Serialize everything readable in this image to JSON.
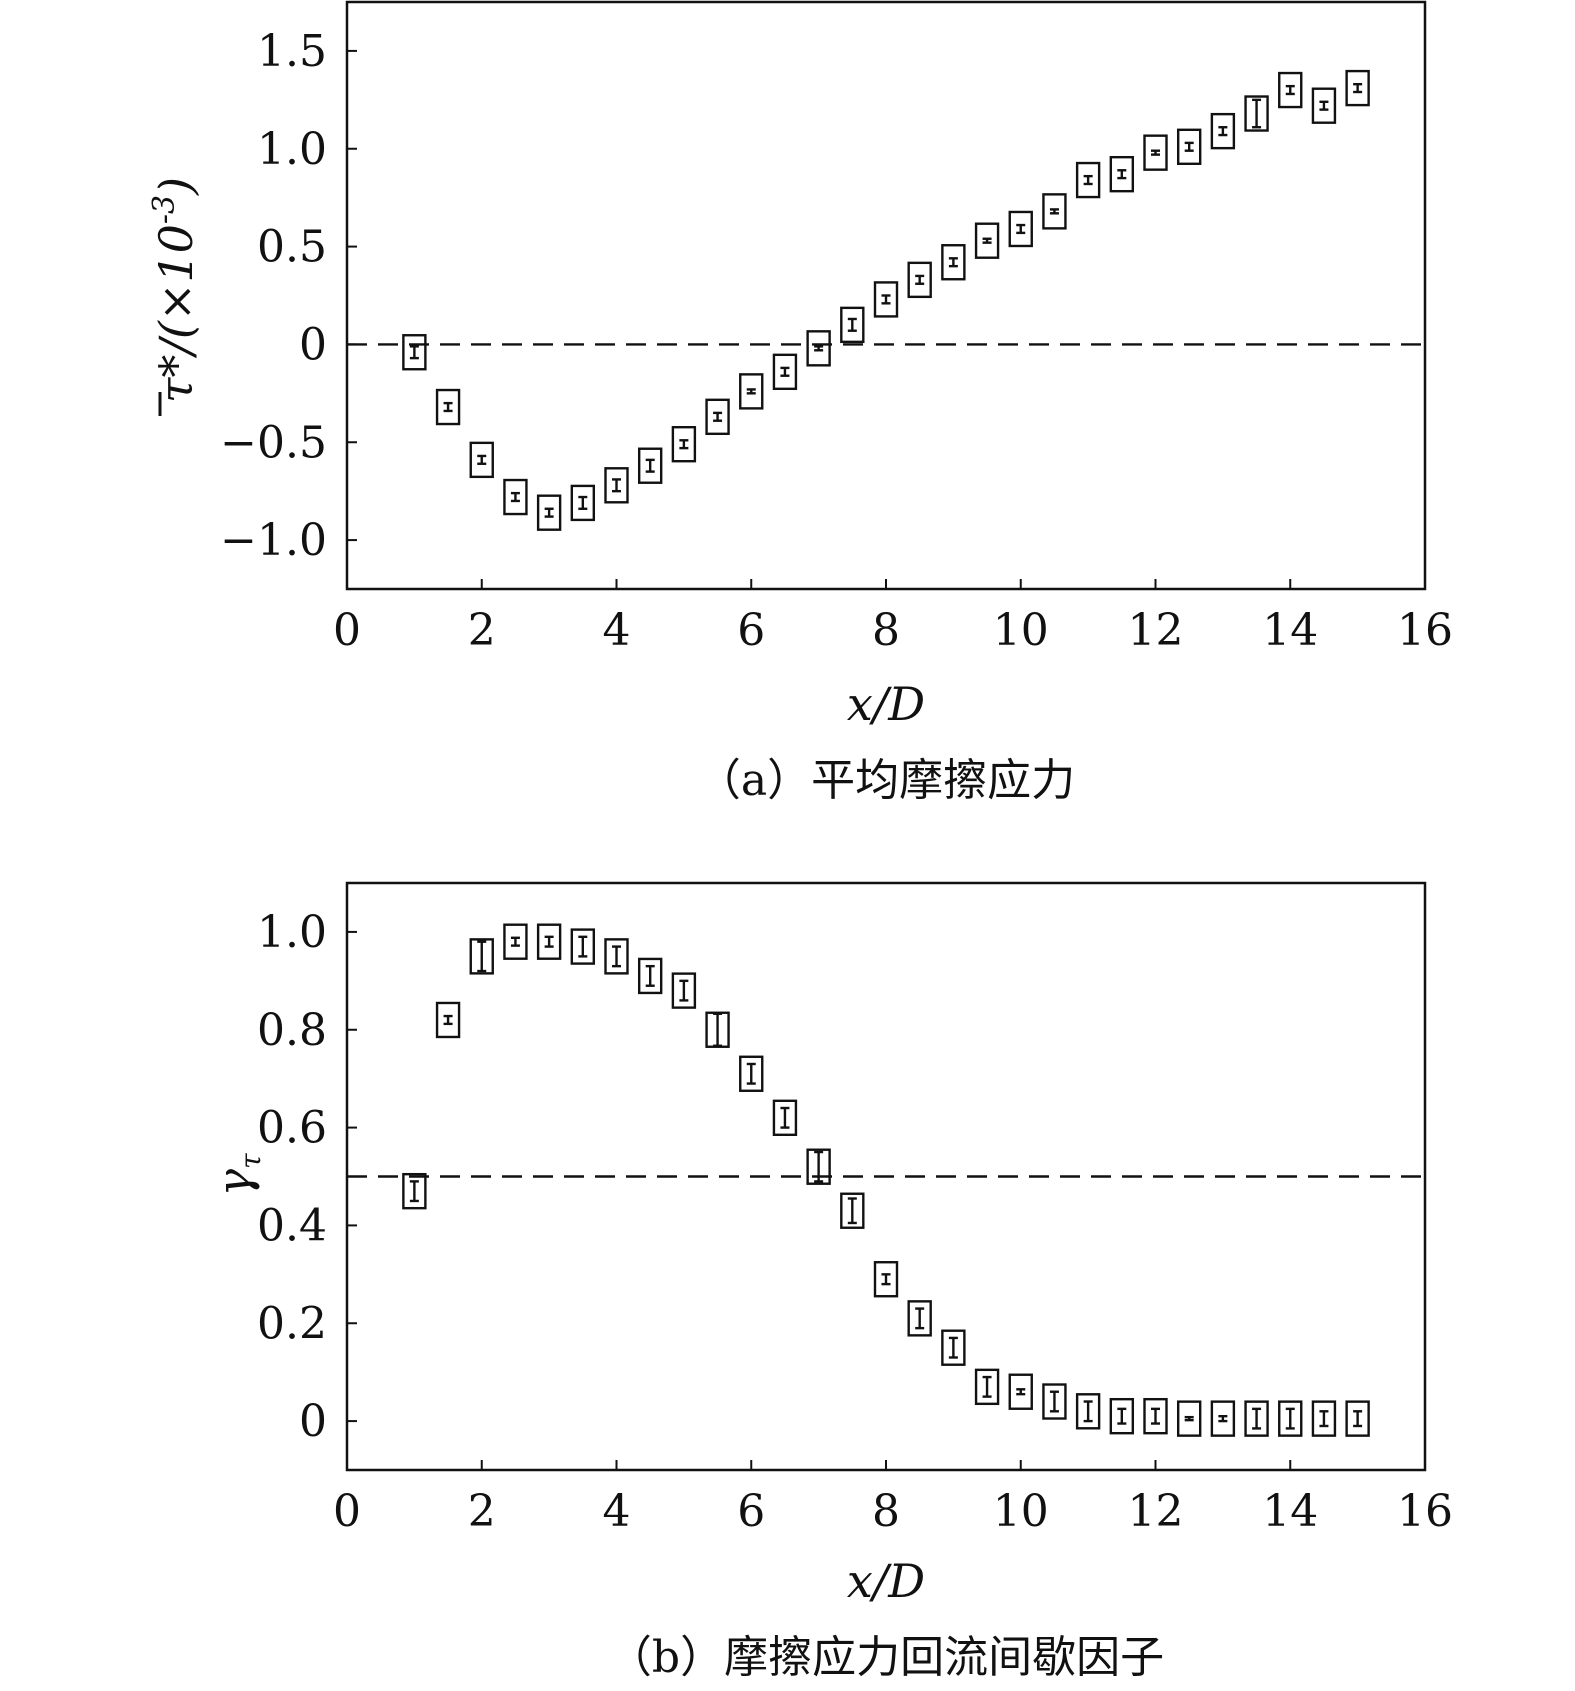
{
  "chart_data": [
    {
      "type": "scatter",
      "caption": "（a）平均摩擦应力",
      "xlabel": "x/D",
      "ylabel": {
        "main": "τ*/(×10",
        "exponent": "-3",
        "close": ")"
      },
      "xlim": [
        0,
        16
      ],
      "ylim": [
        -1.25,
        1.75
      ],
      "xticks": [
        0,
        2,
        4,
        6,
        8,
        10,
        12,
        14,
        16
      ],
      "yticks": [
        -1.0,
        -0.5,
        0,
        0.5,
        1.0,
        1.5
      ],
      "ytick_labels": [
        "−1.0",
        "−0.5",
        "0",
        "0.5",
        "1.0",
        "1.5"
      ],
      "reference_line": {
        "y": 0,
        "style": "dashed"
      },
      "grid": false,
      "series": [
        {
          "marker": "square-with-error-bar",
          "x": [
            1.0,
            1.5,
            2.0,
            2.5,
            3.0,
            3.5,
            4.0,
            4.5,
            5.0,
            5.5,
            6.0,
            6.5,
            7.0,
            7.5,
            8.0,
            8.5,
            9.0,
            9.5,
            10.0,
            10.5,
            11.0,
            11.5,
            12.0,
            12.5,
            13.0,
            13.5,
            14.0,
            14.5,
            15.0
          ],
          "y": [
            -0.04,
            -0.32,
            -0.59,
            -0.78,
            -0.86,
            -0.81,
            -0.72,
            -0.62,
            -0.51,
            -0.37,
            -0.24,
            -0.14,
            -0.02,
            0.1,
            0.23,
            0.33,
            0.42,
            0.53,
            0.59,
            0.68,
            0.84,
            0.87,
            0.98,
            1.01,
            1.09,
            1.18,
            1.3,
            1.22,
            1.31
          ],
          "err": [
            0.03,
            0.02,
            0.02,
            0.02,
            0.02,
            0.03,
            0.03,
            0.03,
            0.02,
            0.02,
            0.01,
            0.02,
            0.01,
            0.03,
            0.02,
            0.02,
            0.02,
            0.01,
            0.02,
            0.01,
            0.02,
            0.02,
            0.01,
            0.02,
            0.02,
            0.07,
            0.02,
            0.02,
            0.02
          ]
        }
      ]
    },
    {
      "type": "scatter",
      "caption": "（b）摩擦应力回流间歇因子",
      "xlabel": "x/D",
      "ylabel": {
        "main": "γ",
        "subscript": "τ"
      },
      "xlim": [
        0,
        16
      ],
      "ylim": [
        -0.1,
        1.1
      ],
      "xticks": [
        0,
        2,
        4,
        6,
        8,
        10,
        12,
        14,
        16
      ],
      "yticks": [
        0,
        0.2,
        0.4,
        0.6,
        0.8,
        1.0
      ],
      "ytick_labels": [
        "0",
        "0.2",
        "0.4",
        "0.6",
        "0.8",
        "1.0"
      ],
      "reference_line": {
        "y": 0.5,
        "style": "dashed"
      },
      "grid": false,
      "series": [
        {
          "marker": "square-with-error-bar",
          "x": [
            1.0,
            1.5,
            2.0,
            2.5,
            3.0,
            3.5,
            4.0,
            4.5,
            5.0,
            5.5,
            6.0,
            6.5,
            7.0,
            7.5,
            8.0,
            8.5,
            9.0,
            9.5,
            10.0,
            10.5,
            11.0,
            11.5,
            12.0,
            12.5,
            13.0,
            13.5,
            14.0,
            14.5,
            15.0
          ],
          "y": [
            0.47,
            0.82,
            0.95,
            0.98,
            0.98,
            0.97,
            0.95,
            0.91,
            0.88,
            0.8,
            0.71,
            0.62,
            0.52,
            0.43,
            0.29,
            0.21,
            0.15,
            0.07,
            0.06,
            0.04,
            0.02,
            0.01,
            0.01,
            0.005,
            0.005,
            0.005,
            0.005,
            0.005,
            0.005
          ],
          "err": [
            0.02,
            0.008,
            0.03,
            0.008,
            0.01,
            0.02,
            0.02,
            0.02,
            0.02,
            0.035,
            0.02,
            0.02,
            0.03,
            0.025,
            0.01,
            0.02,
            0.02,
            0.02,
            0.005,
            0.02,
            0.02,
            0.015,
            0.015,
            0.003,
            0.005,
            0.02,
            0.02,
            0.015,
            0.015
          ]
        }
      ]
    }
  ]
}
